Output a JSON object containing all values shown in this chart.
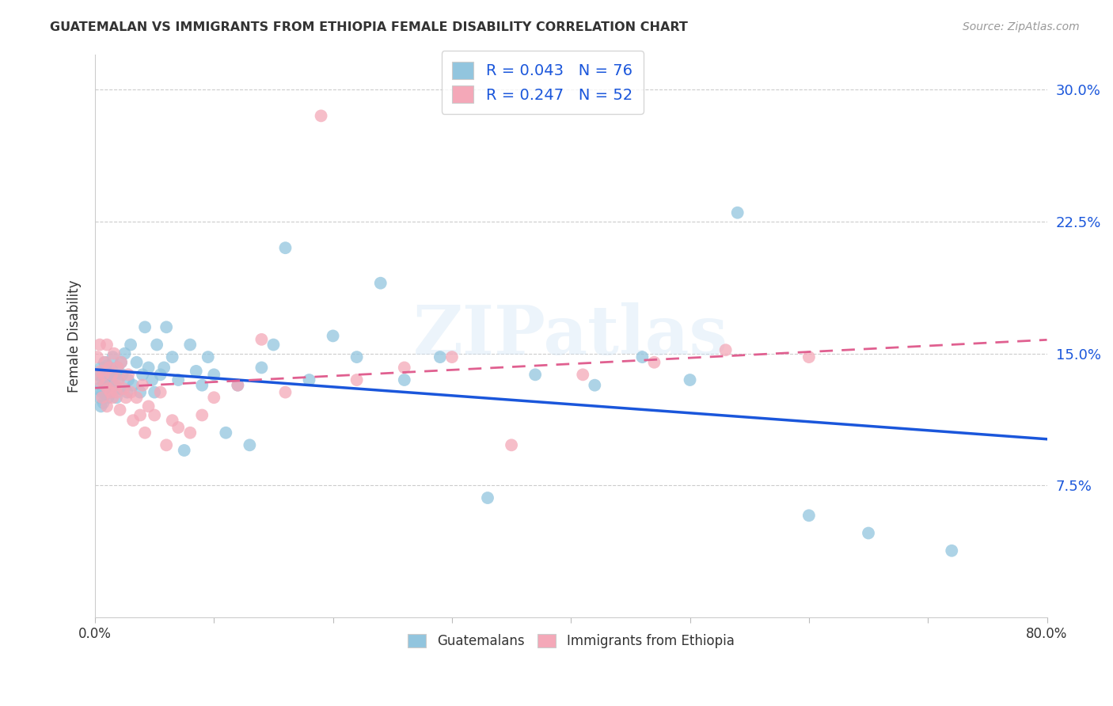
{
  "title": "GUATEMALAN VS IMMIGRANTS FROM ETHIOPIA FEMALE DISABILITY CORRELATION CHART",
  "source": "Source: ZipAtlas.com",
  "ylabel": "Female Disability",
  "xlim": [
    0.0,
    0.8
  ],
  "ylim": [
    0.0,
    0.32
  ],
  "yticks": [
    0.075,
    0.15,
    0.225,
    0.3
  ],
  "ytick_labels": [
    "7.5%",
    "15.0%",
    "22.5%",
    "30.0%"
  ],
  "blue_R": 0.043,
  "blue_N": 76,
  "pink_R": 0.247,
  "pink_N": 52,
  "blue_color": "#92C5DE",
  "pink_color": "#F4A8B8",
  "blue_line_color": "#1A56DB",
  "pink_line_color": "#E06090",
  "watermark": "ZIPatlas",
  "legend_label_blue": "Guatemalans",
  "legend_label_pink": "Immigrants from Ethiopia",
  "blue_scatter_x": [
    0.002,
    0.003,
    0.004,
    0.005,
    0.005,
    0.006,
    0.006,
    0.007,
    0.007,
    0.008,
    0.008,
    0.009,
    0.009,
    0.01,
    0.01,
    0.011,
    0.011,
    0.012,
    0.012,
    0.013,
    0.014,
    0.015,
    0.015,
    0.016,
    0.017,
    0.018,
    0.019,
    0.02,
    0.021,
    0.022,
    0.023,
    0.025,
    0.027,
    0.028,
    0.03,
    0.032,
    0.035,
    0.038,
    0.04,
    0.042,
    0.045,
    0.048,
    0.05,
    0.052,
    0.055,
    0.058,
    0.06,
    0.065,
    0.07,
    0.075,
    0.08,
    0.085,
    0.09,
    0.095,
    0.1,
    0.11,
    0.12,
    0.13,
    0.14,
    0.15,
    0.16,
    0.18,
    0.2,
    0.22,
    0.24,
    0.26,
    0.29,
    0.33,
    0.37,
    0.42,
    0.46,
    0.5,
    0.54,
    0.6,
    0.65,
    0.72
  ],
  "blue_scatter_y": [
    0.13,
    0.138,
    0.125,
    0.142,
    0.12,
    0.135,
    0.128,
    0.14,
    0.122,
    0.133,
    0.145,
    0.127,
    0.136,
    0.131,
    0.143,
    0.125,
    0.138,
    0.13,
    0.142,
    0.128,
    0.135,
    0.14,
    0.148,
    0.132,
    0.138,
    0.125,
    0.142,
    0.136,
    0.13,
    0.145,
    0.138,
    0.15,
    0.128,
    0.135,
    0.155,
    0.132,
    0.145,
    0.128,
    0.138,
    0.165,
    0.142,
    0.135,
    0.128,
    0.155,
    0.138,
    0.142,
    0.165,
    0.148,
    0.135,
    0.095,
    0.155,
    0.14,
    0.132,
    0.148,
    0.138,
    0.105,
    0.132,
    0.098,
    0.142,
    0.155,
    0.21,
    0.135,
    0.16,
    0.148,
    0.19,
    0.135,
    0.148,
    0.068,
    0.138,
    0.132,
    0.148,
    0.135,
    0.23,
    0.058,
    0.048,
    0.038
  ],
  "pink_scatter_x": [
    0.002,
    0.003,
    0.004,
    0.005,
    0.006,
    0.007,
    0.008,
    0.009,
    0.01,
    0.01,
    0.011,
    0.012,
    0.013,
    0.014,
    0.015,
    0.016,
    0.017,
    0.018,
    0.019,
    0.02,
    0.021,
    0.022,
    0.024,
    0.026,
    0.028,
    0.03,
    0.032,
    0.035,
    0.038,
    0.04,
    0.042,
    0.045,
    0.05,
    0.055,
    0.06,
    0.065,
    0.07,
    0.08,
    0.09,
    0.1,
    0.12,
    0.14,
    0.16,
    0.19,
    0.22,
    0.26,
    0.3,
    0.35,
    0.41,
    0.47,
    0.53,
    0.6
  ],
  "pink_scatter_y": [
    0.148,
    0.135,
    0.155,
    0.14,
    0.125,
    0.138,
    0.132,
    0.145,
    0.12,
    0.155,
    0.13,
    0.142,
    0.128,
    0.138,
    0.125,
    0.15,
    0.132,
    0.128,
    0.142,
    0.135,
    0.118,
    0.145,
    0.13,
    0.125,
    0.138,
    0.128,
    0.112,
    0.125,
    0.115,
    0.132,
    0.105,
    0.12,
    0.115,
    0.128,
    0.098,
    0.112,
    0.108,
    0.105,
    0.115,
    0.125,
    0.132,
    0.158,
    0.128,
    0.285,
    0.135,
    0.142,
    0.148,
    0.098,
    0.138,
    0.145,
    0.152,
    0.148
  ]
}
